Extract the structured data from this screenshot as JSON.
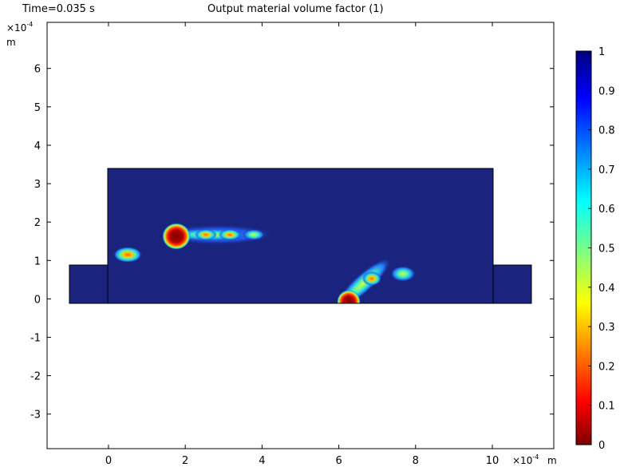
{
  "header": {
    "time_label": "Time=0.035 s",
    "title": "Output material volume factor (1)"
  },
  "chart_data": {
    "type": "heatmap",
    "title": "Output material volume factor (1)",
    "subtitle": "Time=0.035 s",
    "x_axis": {
      "scale_label": "×10⁻⁴",
      "unit": "m",
      "range": [
        -1.6,
        11.6
      ],
      "ticks": [
        0,
        2,
        4,
        6,
        8,
        10
      ],
      "tick_labels": [
        "0",
        "2",
        "4",
        "6",
        "8",
        "10"
      ]
    },
    "y_axis": {
      "scale_label": "×10⁻⁴",
      "unit": "m",
      "range": [
        -3.9,
        7.2
      ],
      "ticks": [
        -3,
        -2,
        -1,
        0,
        1,
        2,
        3,
        4,
        5,
        6
      ],
      "tick_labels": [
        "-3",
        "-2",
        "-1",
        "0",
        "1",
        "2",
        "3",
        "4",
        "5",
        "6"
      ]
    },
    "colorbar": {
      "range": [
        0,
        1
      ],
      "ticks": [
        0,
        0.1,
        0.2,
        0.3,
        0.4,
        0.5,
        0.6,
        0.7,
        0.8,
        0.9,
        1
      ],
      "tick_labels": [
        "0",
        "0.1",
        "0.2",
        "0.3",
        "0.4",
        "0.5",
        "0.6",
        "0.7",
        "0.8",
        "0.9",
        "1"
      ],
      "colormap": "jet-reversed",
      "colors": {
        "low": "#7f0000",
        "high": "#1a237e"
      }
    },
    "domain_background_value": 1,
    "geometry": [
      {
        "shape": "rect",
        "x0": -1,
        "x1": 0,
        "y0": 0,
        "y1": 1
      },
      {
        "shape": "rect",
        "x0": 0,
        "x1": 10,
        "y0": 0,
        "y1": 3.5
      },
      {
        "shape": "rect",
        "x0": 10,
        "x1": 11,
        "y0": 0,
        "y1": 1
      }
    ],
    "features": [
      {
        "x": 1.75,
        "y": 1.75,
        "value": 0.05
      },
      {
        "x": 2.6,
        "y": 1.78,
        "value": 0.3
      },
      {
        "x": 3.2,
        "y": 1.78,
        "value": 0.3
      },
      {
        "x": 3.8,
        "y": 1.78,
        "value": 0.5
      },
      {
        "x": 0.5,
        "y": 1.25,
        "value": 0.3
      },
      {
        "x": 6.3,
        "y": 0.1,
        "value": 0.05
      },
      {
        "x": 6.9,
        "y": 0.62,
        "value": 0.3
      },
      {
        "x": 7.65,
        "y": 0.78,
        "value": 0.35
      }
    ]
  }
}
